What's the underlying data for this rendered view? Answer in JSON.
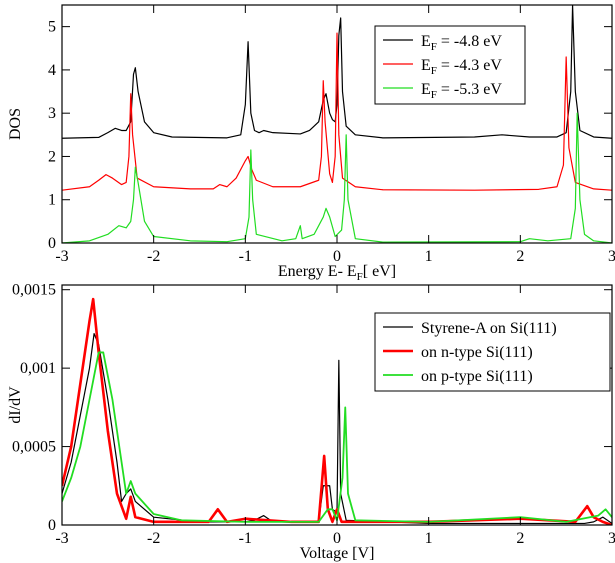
{
  "chart_data": [
    {
      "type": "line",
      "xlabel": [
        "Energy E- E",
        "F",
        "[ eV]"
      ],
      "ylabel": "DOS",
      "xlim": [
        -3,
        3
      ],
      "ylim": [
        0,
        5.5
      ],
      "xticks": [
        -3,
        -2,
        -1,
        0,
        1,
        2,
        3
      ],
      "yticks": [
        0,
        1,
        2,
        3,
        4,
        5
      ],
      "legend": "upper right",
      "series": [
        {
          "name": "EF = -4.8 eV",
          "color": "#000000",
          "line_width": 1.2,
          "x": [
            -3,
            -2.6,
            -2.5,
            -2.42,
            -2.35,
            -2.3,
            -2.25,
            -2.22,
            -2.2,
            -2.17,
            -2.1,
            -2.0,
            -1.8,
            -1.2,
            -1.05,
            -1.0,
            -0.97,
            -0.94,
            -0.9,
            -0.85,
            -0.8,
            -0.7,
            -0.4,
            -0.3,
            -0.2,
            -0.15,
            -0.12,
            -0.08,
            -0.05,
            -0.02,
            0.0,
            0.02,
            0.04,
            0.06,
            0.1,
            0.2,
            0.5,
            1.5,
            1.8,
            2.1,
            2.4,
            2.5,
            2.55,
            2.57,
            2.6,
            2.65,
            2.8,
            3
          ],
          "values": [
            2.42,
            2.44,
            2.55,
            2.65,
            2.6,
            2.6,
            2.8,
            3.9,
            4.05,
            3.5,
            2.8,
            2.55,
            2.45,
            2.43,
            2.5,
            3.2,
            4.65,
            3.0,
            2.6,
            2.55,
            2.6,
            2.55,
            2.52,
            2.6,
            2.8,
            3.3,
            3.45,
            3.0,
            2.85,
            2.8,
            3.2,
            4.8,
            5.2,
            3.5,
            2.7,
            2.5,
            2.43,
            2.45,
            2.5,
            2.45,
            2.45,
            2.55,
            3.5,
            5.5,
            3.5,
            2.6,
            2.45,
            2.42
          ]
        },
        {
          "name": "EF = -4.3 eV",
          "color": "#ff0000",
          "line_width": 1.2,
          "x": [
            -3,
            -2.7,
            -2.6,
            -2.52,
            -2.45,
            -2.35,
            -2.3,
            -2.27,
            -2.25,
            -2.23,
            -2.18,
            -2.0,
            -1.6,
            -1.35,
            -1.28,
            -1.2,
            -1.1,
            -1.0,
            -0.97,
            -0.93,
            -0.88,
            -0.7,
            -0.4,
            -0.2,
            -0.17,
            -0.15,
            -0.13,
            -0.08,
            -0.05,
            -0.02,
            0.0,
            0.02,
            0.06,
            0.2,
            0.5,
            1.5,
            2.2,
            2.4,
            2.47,
            2.5,
            2.53,
            2.6,
            2.8,
            3
          ],
          "values": [
            1.22,
            1.3,
            1.45,
            1.58,
            1.5,
            1.35,
            1.4,
            2.0,
            3.45,
            2.5,
            1.5,
            1.3,
            1.25,
            1.25,
            1.35,
            1.3,
            1.5,
            1.9,
            2.0,
            1.7,
            1.45,
            1.3,
            1.3,
            1.45,
            2.0,
            3.75,
            2.8,
            1.6,
            1.4,
            2.0,
            4.85,
            2.5,
            1.5,
            1.3,
            1.23,
            1.22,
            1.24,
            1.3,
            1.8,
            4.3,
            2.2,
            1.4,
            1.25,
            1.22
          ]
        },
        {
          "name": "EF = -5.3 eV",
          "color": "#22dd22",
          "line_width": 1.2,
          "x": [
            -3,
            -2.7,
            -2.5,
            -2.38,
            -2.3,
            -2.25,
            -2.22,
            -2.2,
            -2.17,
            -2.1,
            -2.0,
            -1.6,
            -1.2,
            -1.0,
            -0.96,
            -0.94,
            -0.92,
            -0.88,
            -0.6,
            -0.45,
            -0.4,
            -0.38,
            -0.25,
            -0.15,
            -0.12,
            -0.08,
            -0.02,
            0.05,
            0.08,
            0.1,
            0.12,
            0.2,
            0.5,
            2.0,
            2.1,
            2.3,
            2.55,
            2.6,
            2.62,
            2.65,
            2.7,
            2.8,
            3
          ],
          "values": [
            0.0,
            0.05,
            0.2,
            0.4,
            0.35,
            0.5,
            1.0,
            1.75,
            1.4,
            0.5,
            0.15,
            0.05,
            0.03,
            0.1,
            0.6,
            2.15,
            1.0,
            0.2,
            0.05,
            0.1,
            0.4,
            0.1,
            0.2,
            0.6,
            0.8,
            0.6,
            0.15,
            0.3,
            1.0,
            2.5,
            1.0,
            0.1,
            0.02,
            0.03,
            0.1,
            0.05,
            0.1,
            0.8,
            3.0,
            1.0,
            0.2,
            0.05,
            0.0
          ]
        }
      ]
    },
    {
      "type": "line",
      "xlabel": [
        "Voltage [V]"
      ],
      "ylabel": "dI/dV",
      "xlim": [
        -3,
        3
      ],
      "ylim": [
        0,
        0.00153
      ],
      "xticks": [
        -3,
        -2,
        -1,
        0,
        1,
        2,
        3
      ],
      "yticks": [
        0,
        {
          "value": 0.0005,
          "label": "0,0005"
        },
        {
          "value": 0.001,
          "label": "0,001"
        },
        {
          "value": 0.0015,
          "label": "0,0015"
        }
      ],
      "legend": "upper right",
      "series": [
        {
          "name": "Styrene-A on Si(111)",
          "color": "#000000",
          "line_width": 1.2,
          "x": [
            -3,
            -2.9,
            -2.8,
            -2.7,
            -2.65,
            -2.6,
            -2.5,
            -2.4,
            -2.35,
            -2.3,
            -2.25,
            -2.2,
            -2.0,
            -1.5,
            -1.0,
            -0.9,
            -0.8,
            -0.7,
            -0.2,
            -0.15,
            -0.08,
            -0.05,
            0.0,
            0.02,
            0.04,
            0.1,
            1.0,
            2.0,
            2.7,
            2.8,
            2.9,
            3
          ],
          "values": [
            0.0002,
            0.0004,
            0.0007,
            0.001,
            0.00122,
            0.00115,
            0.0008,
            0.0004,
            0.00015,
            0.0002,
            0.00023,
            0.00015,
            5e-05,
            2e-05,
            2e-05,
            3e-05,
            6e-05,
            2e-05,
            2e-05,
            0.00025,
            0.00025,
            0.0001,
            8e-05,
            0.00105,
            0.0002,
            3e-05,
            1e-05,
            1e-05,
            1e-05,
            2e-05,
            5e-05,
            1e-05
          ]
        },
        {
          "name": "on n-type Si(111)",
          "color": "#ff0000",
          "line_width": 2.6,
          "x": [
            -3,
            -2.9,
            -2.8,
            -2.7,
            -2.66,
            -2.6,
            -2.5,
            -2.4,
            -2.3,
            -2.25,
            -2.2,
            -2.0,
            -1.4,
            -1.3,
            -1.2,
            -1.0,
            -0.5,
            -0.2,
            -0.14,
            -0.1,
            -0.05,
            0.0,
            0.05,
            1.0,
            2.0,
            2.6,
            2.73,
            2.8,
            2.9,
            3
          ],
          "values": [
            0.00025,
            0.0005,
            0.0009,
            0.0013,
            0.00144,
            0.0011,
            0.0006,
            0.0002,
            4e-05,
            0.00018,
            5e-05,
            2e-05,
            2e-05,
            0.0001,
            2e-05,
            4e-05,
            2e-05,
            2e-05,
            0.00044,
            0.0001,
            2e-05,
            0.0001,
            2e-05,
            2e-05,
            4e-05,
            2e-05,
            0.00012,
            5e-05,
            2e-05,
            0.0
          ]
        },
        {
          "name": "on p-type Si(111)",
          "color": "#22dd22",
          "line_width": 1.8,
          "x": [
            -3,
            -2.9,
            -2.8,
            -2.7,
            -2.6,
            -2.55,
            -2.45,
            -2.35,
            -2.3,
            -2.25,
            -2.2,
            -2.0,
            -1.7,
            -1.0,
            -0.2,
            -0.1,
            -0.05,
            0.0,
            0.06,
            0.09,
            0.12,
            0.2,
            1.0,
            2.0,
            2.5,
            2.85,
            2.93,
            3
          ],
          "values": [
            0.00015,
            0.0003,
            0.0005,
            0.0008,
            0.0011,
            0.0011,
            0.0008,
            0.0004,
            0.0002,
            0.00028,
            0.0002,
            7e-05,
            3e-05,
            2e-05,
            2e-05,
            0.0001,
            0.0001,
            3e-05,
            0.0003,
            0.00075,
            0.0002,
            3e-05,
            2e-05,
            5e-05,
            2e-05,
            6e-05,
            0.0001,
            5e-05
          ]
        }
      ]
    }
  ]
}
